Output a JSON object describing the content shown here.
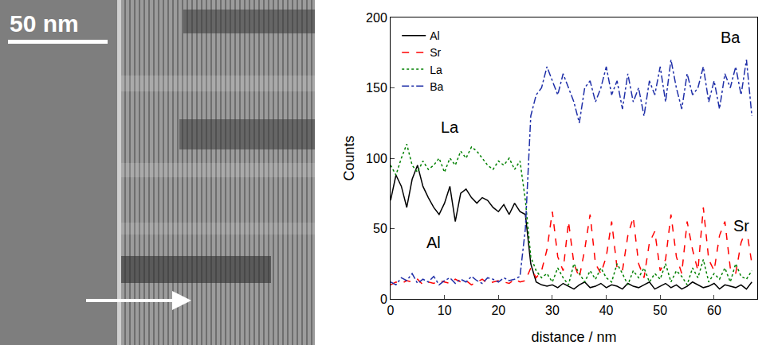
{
  "micrograph": {
    "scale_bar": "50 nm"
  },
  "chart_data": {
    "type": "line",
    "x_label": "distance / nm",
    "y_label": "Counts",
    "x": [
      0,
      1,
      2,
      3,
      4,
      5,
      6,
      7,
      8,
      9,
      10,
      11,
      12,
      13,
      14,
      15,
      16,
      17,
      18,
      19,
      20,
      21,
      22,
      23,
      24,
      25,
      26,
      27,
      28,
      29,
      30,
      31,
      32,
      33,
      34,
      35,
      36,
      37,
      38,
      39,
      40,
      41,
      42,
      43,
      44,
      45,
      46,
      47,
      48,
      49,
      50,
      51,
      52,
      53,
      54,
      55,
      56,
      57,
      58,
      59,
      60,
      61,
      62,
      63,
      64,
      65,
      66,
      67
    ],
    "xlim": [
      0,
      68
    ],
    "xticks": [
      0,
      10,
      20,
      30,
      40,
      50,
      60
    ],
    "ylim": [
      0,
      200
    ],
    "yticks": [
      0,
      50,
      100,
      150,
      200
    ],
    "grid": false,
    "legend": "upper left",
    "series": [
      {
        "name": "Al",
        "color": "#000000",
        "line_style": "solid",
        "values": [
          70,
          88,
          80,
          65,
          85,
          95,
          80,
          72,
          65,
          60,
          68,
          80,
          55,
          75,
          78,
          72,
          68,
          72,
          70,
          65,
          62,
          67,
          60,
          68,
          62,
          60,
          25,
          12,
          10,
          9,
          10,
          8,
          11,
          9,
          7,
          10,
          12,
          8,
          9,
          11,
          8,
          10,
          9,
          7,
          11,
          9,
          8,
          10,
          12,
          7,
          9,
          11,
          8,
          10,
          7,
          9,
          12,
          10,
          8,
          9,
          11,
          7,
          10,
          9,
          8,
          10,
          7,
          12
        ]
      },
      {
        "name": "Sr",
        "color": "#ff0000",
        "line_style": "dashed",
        "values": [
          10,
          12,
          11,
          13,
          12,
          14,
          10,
          12,
          11,
          13,
          12,
          11,
          14,
          12,
          13,
          10,
          12,
          14,
          11,
          12,
          13,
          12,
          11,
          14,
          12,
          13,
          22,
          15,
          20,
          35,
          62,
          30,
          20,
          55,
          25,
          15,
          35,
          60,
          25,
          18,
          30,
          55,
          22,
          20,
          45,
          58,
          25,
          15,
          40,
          48,
          20,
          28,
          60,
          30,
          18,
          55,
          35,
          20,
          65,
          28,
          20,
          45,
          55,
          22,
          18,
          40,
          50,
          25
        ]
      },
      {
        "name": "La",
        "color": "#008000",
        "line_style": "dotted",
        "values": [
          95,
          88,
          100,
          110,
          95,
          90,
          98,
          92,
          95,
          100,
          90,
          100,
          95,
          105,
          100,
          108,
          105,
          100,
          95,
          92,
          98,
          95,
          100,
          92,
          98,
          70,
          30,
          20,
          15,
          18,
          12,
          22,
          15,
          10,
          25,
          18,
          12,
          20,
          14,
          22,
          15,
          12,
          25,
          18,
          10,
          20,
          15,
          22,
          12,
          18,
          14,
          25,
          12,
          20,
          16,
          10,
          22,
          15,
          28,
          12,
          18,
          14,
          22,
          12,
          25,
          16,
          14,
          20
        ]
      },
      {
        "name": "Ba",
        "color": "#1f2fa8",
        "line_style": "dashdot",
        "values": [
          12,
          10,
          15,
          13,
          18,
          11,
          14,
          12,
          16,
          10,
          13,
          15,
          11,
          14,
          12,
          16,
          13,
          11,
          15,
          14,
          12,
          15,
          13,
          14,
          16,
          50,
          130,
          145,
          150,
          165,
          155,
          145,
          160,
          150,
          140,
          125,
          150,
          155,
          140,
          150,
          165,
          145,
          155,
          135,
          160,
          140,
          150,
          130,
          155,
          145,
          165,
          140,
          170,
          150,
          135,
          160,
          145,
          150,
          165,
          140,
          155,
          135,
          160,
          150,
          165,
          145,
          170,
          130
        ]
      }
    ],
    "annotations": [
      {
        "text": "La",
        "x": 11,
        "y": 122
      },
      {
        "text": "Al",
        "x": 8,
        "y": 40
      },
      {
        "text": "Ba",
        "x": 63,
        "y": 186
      },
      {
        "text": "Sr",
        "x": 65,
        "y": 52
      }
    ]
  }
}
